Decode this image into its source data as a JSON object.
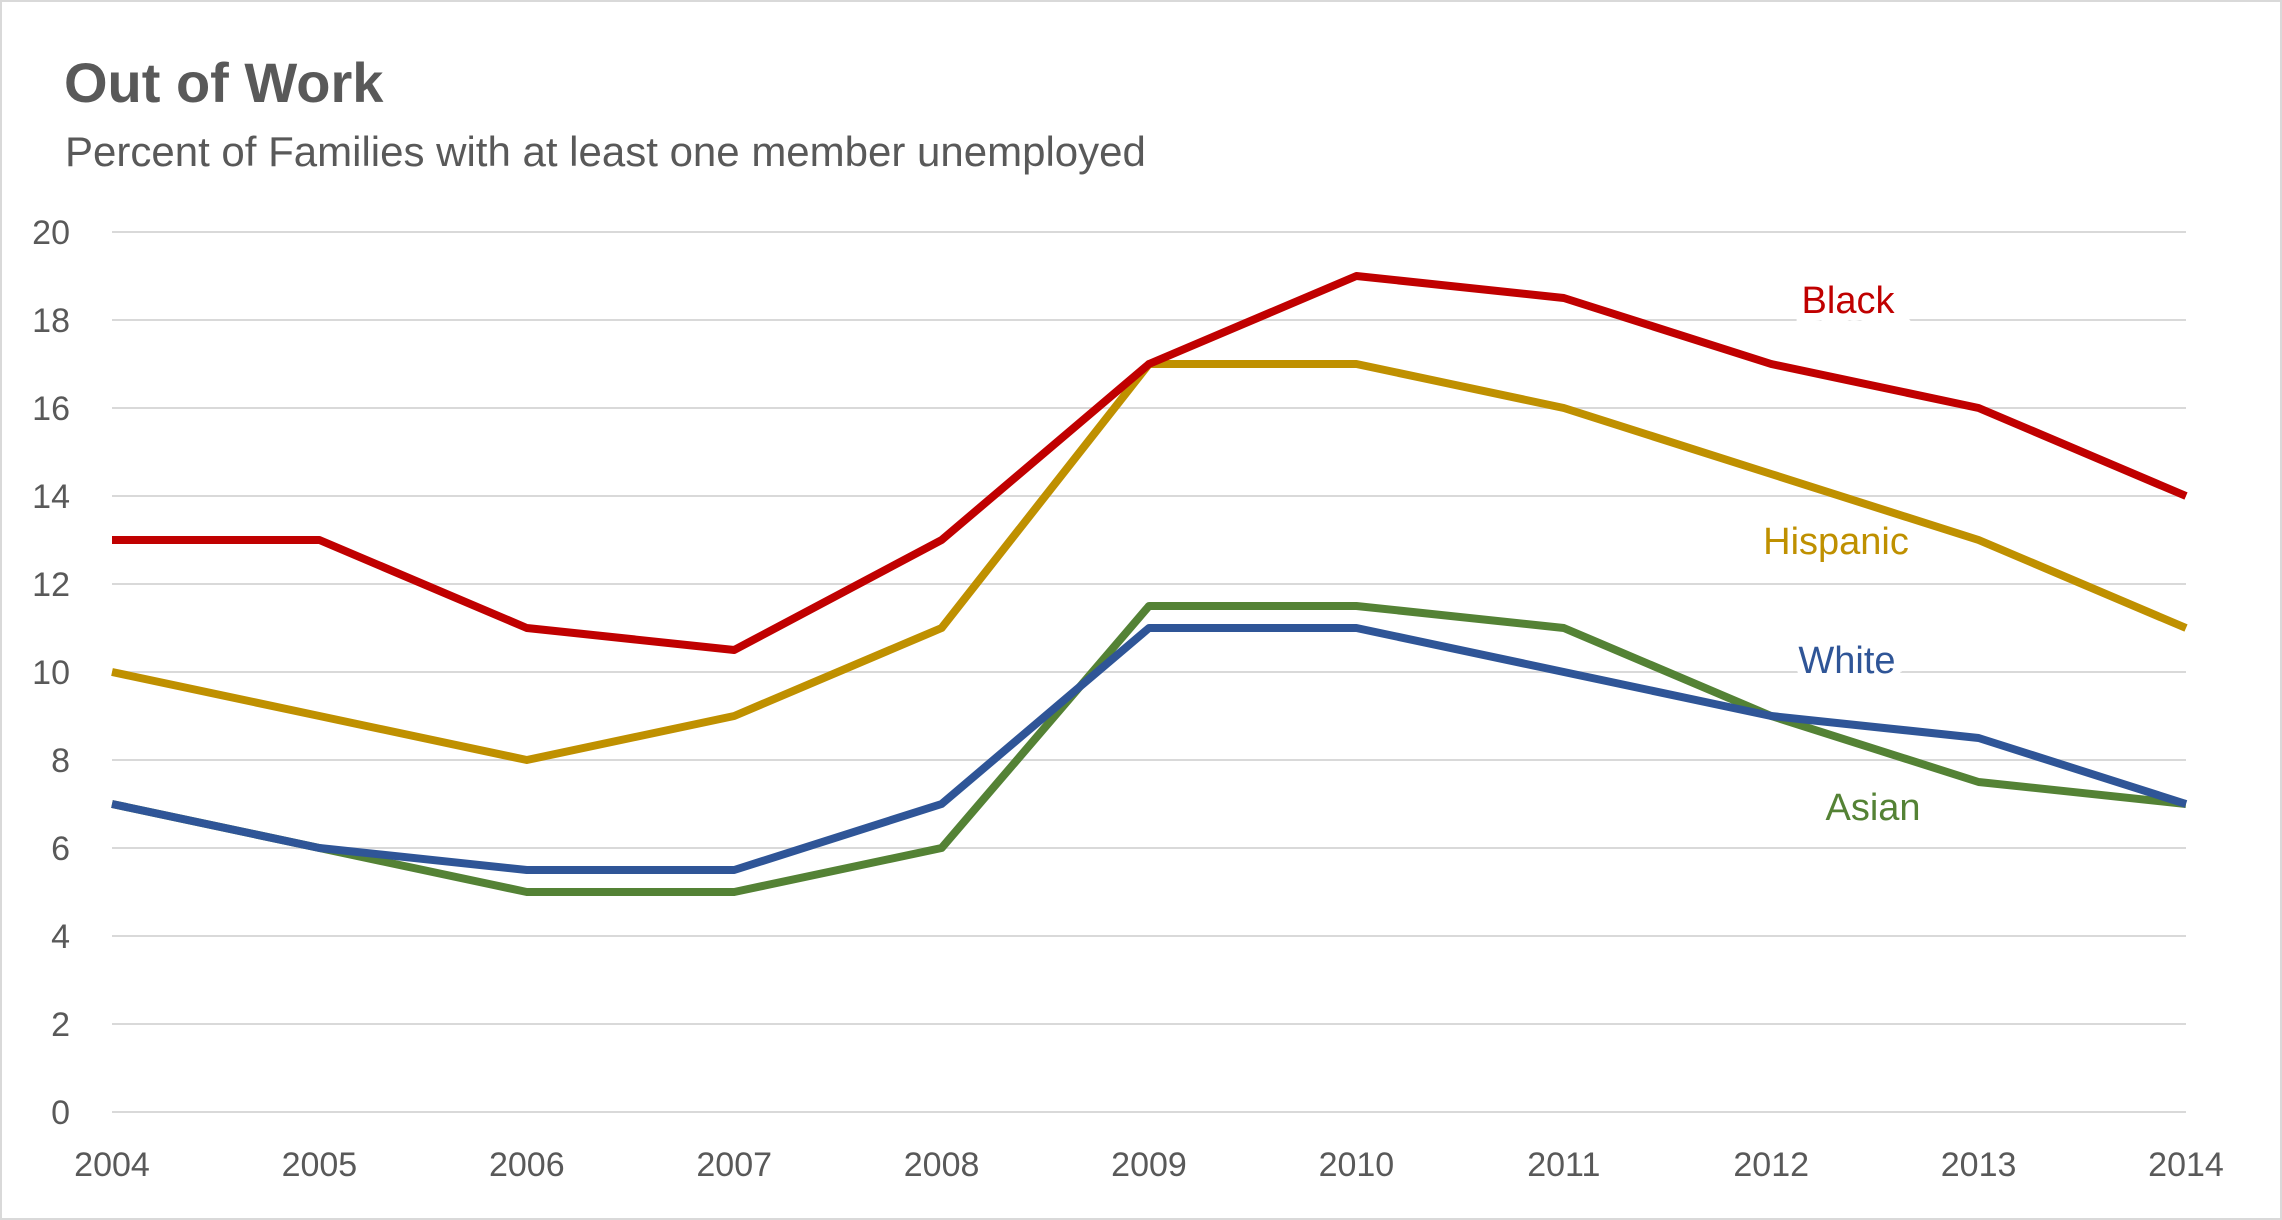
{
  "chart_data": {
    "type": "line",
    "title": "Out of Work",
    "subtitle": "Percent of Families with at least one member unemployed",
    "xlabel": "",
    "ylabel": "",
    "x": [
      2004,
      2005,
      2006,
      2007,
      2008,
      2009,
      2010,
      2011,
      2012,
      2013,
      2014
    ],
    "ylim": [
      0,
      20
    ],
    "yticks": [
      0,
      2,
      4,
      6,
      8,
      10,
      12,
      14,
      16,
      18,
      20
    ],
    "grid": true,
    "legend": "inline labels",
    "series": [
      {
        "name": "Black",
        "color": "#c00000",
        "values": [
          13,
          13,
          11,
          10.5,
          13,
          17,
          19,
          18.5,
          17,
          16,
          14
        ]
      },
      {
        "name": "Hispanic",
        "color": "#bf9000",
        "values": [
          10,
          9,
          8,
          9,
          11,
          17,
          17,
          16,
          14.5,
          13,
          11
        ]
      },
      {
        "name": "White",
        "color": "#2f5597",
        "values": [
          7,
          6,
          5.5,
          5.5,
          7,
          11,
          11,
          10,
          9,
          8.5,
          7
        ]
      },
      {
        "name": "Asian",
        "color": "#548235",
        "values": [
          7,
          6,
          5,
          5,
          6,
          11.5,
          11.5,
          11,
          9,
          7.5,
          7
        ]
      }
    ]
  }
}
